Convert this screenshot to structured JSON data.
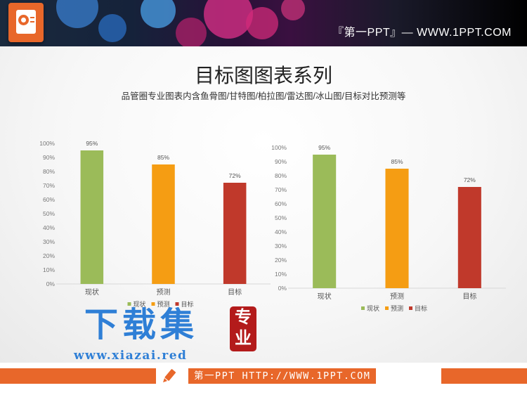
{
  "header": {
    "site_brand": "『第一PPT』— WWW.1PPT.COM",
    "logo_icon": "powerpoint-icon"
  },
  "page": {
    "title": "目标图图表系列",
    "subtitle": "品管圈专业图表内含鱼骨图/甘特图/柏拉图/雷达图/冰山图/目标对比预测等"
  },
  "chart_data": [
    {
      "type": "bar",
      "categories": [
        "现状",
        "预测",
        "目标"
      ],
      "values": [
        95,
        85,
        72
      ],
      "value_labels": [
        "95%",
        "85%",
        "72%"
      ],
      "colors": [
        "#9bbb59",
        "#f59d13",
        "#c0392b"
      ],
      "yticks": [
        "0%",
        "10%",
        "20%",
        "30%",
        "40%",
        "50%",
        "60%",
        "70%",
        "80%",
        "90%",
        "100%"
      ],
      "ylim": [
        0,
        100
      ],
      "legend": [
        "现状",
        "预测",
        "目标"
      ],
      "legend_position": "bottom",
      "grid": false
    },
    {
      "type": "bar",
      "categories": [
        "现状",
        "预测",
        "目标"
      ],
      "values": [
        95,
        85,
        72
      ],
      "value_labels": [
        "95%",
        "85%",
        "72%"
      ],
      "colors": [
        "#9bbb59",
        "#f59d13",
        "#c0392b"
      ],
      "yticks": [
        "0%",
        "10%",
        "20%",
        "30%",
        "40%",
        "50%",
        "60%",
        "70%",
        "80%",
        "90%",
        "100%"
      ],
      "ylim": [
        0,
        100
      ],
      "legend": [
        "现状",
        "预测",
        "目标"
      ],
      "legend_position": "bottom",
      "grid": false
    }
  ],
  "watermark": {
    "text": "下载集",
    "url": "www.xiazai.red",
    "seal": "专业"
  },
  "footer": {
    "text": "第一PPT HTTP://WWW.1PPT.COM",
    "icon": "pencil-icon"
  }
}
